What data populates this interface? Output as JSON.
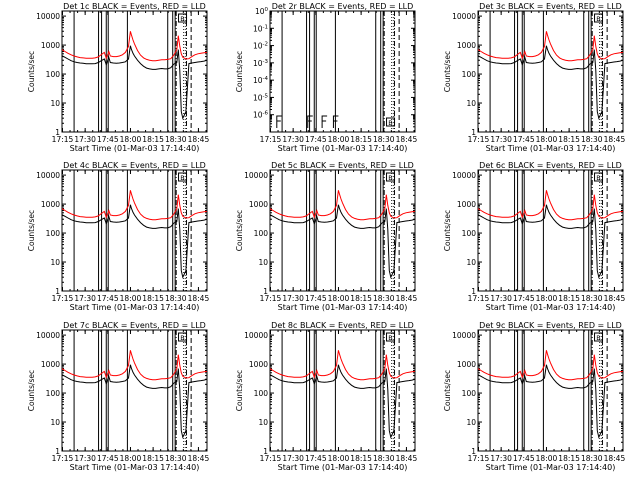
{
  "chart_data": [
    {
      "type": "line",
      "title": "Det 1c BLACK = Events, RED = LLD",
      "detector": "1c",
      "empty": false
    },
    {
      "type": "line",
      "title": "Det 2r BLACK = Events, RED = LLD",
      "detector": "2r",
      "empty": true
    },
    {
      "type": "line",
      "title": "Det 3c BLACK = Events, RED = LLD",
      "detector": "3c",
      "empty": false
    },
    {
      "type": "line",
      "title": "Det 4c BLACK = Events, RED = LLD",
      "detector": "4c",
      "empty": false
    },
    {
      "type": "line",
      "title": "Det 5c BLACK = Events, RED = LLD",
      "detector": "5c",
      "empty": false
    },
    {
      "type": "line",
      "title": "Det 6c BLACK = Events, RED = LLD",
      "detector": "6c",
      "empty": false
    },
    {
      "type": "line",
      "title": "Det 7c BLACK = Events, RED = LLD",
      "detector": "7c",
      "empty": false
    },
    {
      "type": "line",
      "title": "Det 8c BLACK = Events, RED = LLD",
      "detector": "8c",
      "empty": false
    },
    {
      "type": "line",
      "title": "Det 9c BLACK = Events, RED = LLD",
      "detector": "9c",
      "empty": false
    }
  ],
  "shared_axes": {
    "xlabel": "Start Time (01-Mar-03 17:14:40)",
    "ylabel": "Counts/sec",
    "xlim_minutes_after_17_14_40": [
      0,
      96
    ],
    "x_ticks": [
      {
        "label": "17:15",
        "value": 0.33
      },
      {
        "label": "17:30",
        "value": 15.33
      },
      {
        "label": "17:45",
        "value": 30.33
      },
      {
        "label": "18:00",
        "value": 45.33
      },
      {
        "label": "18:15",
        "value": 60.33
      },
      {
        "label": "18:30",
        "value": 75.33
      },
      {
        "label": "18:45",
        "value": 90.33
      }
    ],
    "y_scale": "log",
    "ylim": [
      1,
      15000
    ],
    "y_ticks": [
      {
        "label": "1",
        "value": 1
      },
      {
        "label": "10",
        "value": 10
      },
      {
        "label": "100",
        "value": 100
      },
      {
        "label": "1000",
        "value": 1000
      },
      {
        "label": "10000",
        "value": 10000
      }
    ],
    "empty_ylim": [
      1e-07,
      1
    ],
    "empty_y_ticks": [
      {
        "label": "10^-6",
        "value": 1e-06
      },
      {
        "label": "10^-5",
        "value": 1e-05
      },
      {
        "label": "10^-4",
        "value": 0.0001
      },
      {
        "label": "10^-3",
        "value": 0.001
      },
      {
        "label": "10^-2",
        "value": 0.01
      },
      {
        "label": "10^-1",
        "value": 0.1
      },
      {
        "label": "10^0",
        "value": 1
      }
    ]
  },
  "series": [
    {
      "name": "Events",
      "color": "#000000",
      "x": [
        0,
        2,
        4,
        6,
        8,
        10,
        12,
        14,
        16,
        18,
        20,
        22,
        24,
        26,
        28,
        29.3,
        31,
        32,
        34,
        36,
        38,
        40,
        42,
        44,
        45.3,
        46,
        47,
        48,
        50,
        52,
        54,
        56,
        58,
        60,
        62,
        64,
        66,
        68,
        70,
        72,
        74,
        76,
        77,
        78,
        79,
        80,
        82,
        84,
        86,
        88,
        90,
        92,
        94,
        96
      ],
      "values": [
        430,
        380,
        330,
        290,
        265,
        250,
        240,
        235,
        225,
        225,
        225,
        230,
        250,
        290,
        330,
        210,
        380,
        250,
        240,
        235,
        240,
        250,
        265,
        330,
        950,
        700,
        520,
        420,
        300,
        230,
        185,
        160,
        150,
        145,
        145,
        150,
        155,
        150,
        150,
        165,
        220,
        250,
        700,
        130,
        5,
        3,
        5,
        230,
        240,
        250,
        260,
        270,
        280,
        300
      ]
    },
    {
      "name": "LLD",
      "color": "#ff0000",
      "x": [
        0,
        2,
        4,
        6,
        8,
        10,
        12,
        14,
        16,
        18,
        20,
        22,
        24,
        26,
        28,
        29.3,
        31,
        32,
        34,
        36,
        38,
        40,
        42,
        44,
        45.3,
        46,
        47,
        48,
        50,
        52,
        54,
        56,
        58,
        60,
        62,
        64,
        66,
        68,
        70,
        72,
        74,
        76,
        77,
        78,
        79,
        80,
        82,
        84,
        86,
        88,
        90,
        92,
        94,
        96
      ],
      "values": [
        700,
        600,
        520,
        460,
        420,
        390,
        370,
        360,
        350,
        350,
        350,
        360,
        390,
        470,
        560,
        350,
        600,
        420,
        400,
        400,
        420,
        460,
        560,
        900,
        3000,
        2200,
        1500,
        1100,
        650,
        450,
        360,
        320,
        300,
        290,
        290,
        300,
        310,
        310,
        320,
        340,
        450,
        700,
        2100,
        900,
        500,
        380,
        330,
        340,
        400,
        460,
        500,
        520,
        540,
        560
      ]
    }
  ],
  "markers": {
    "solid_vertical_lines": [
      8.0,
      24.2,
      26.2,
      29.3,
      30.6,
      43.3,
      70.0,
      73.3,
      74.9
    ],
    "dash_dot_vertical_lines": [
      75.6,
      82.4
    ],
    "dashed_vertical_lines": [
      85.5
    ],
    "dotted_vertical_lines": [
      80.6,
      82.0
    ],
    "box_label": "B"
  }
}
